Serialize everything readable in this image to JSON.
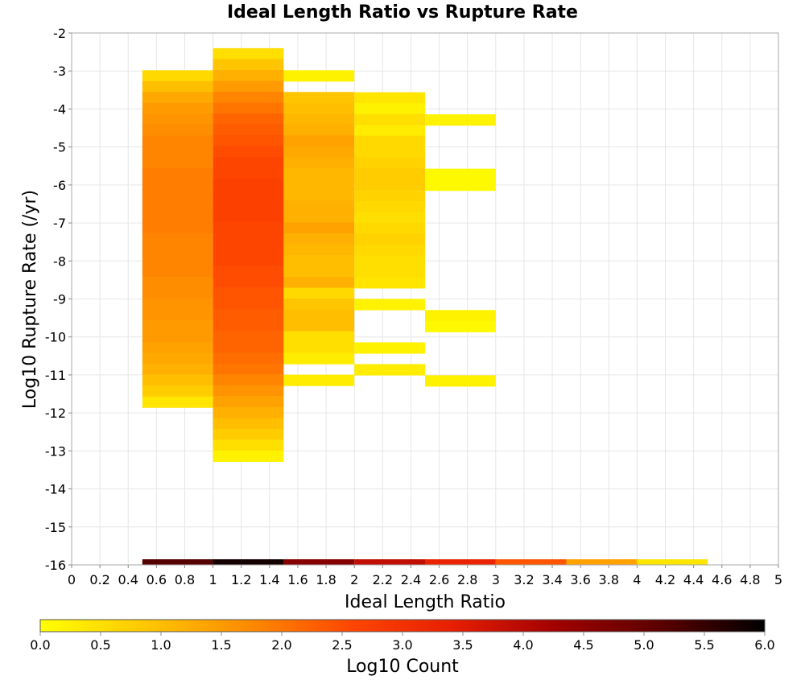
{
  "chart_data": {
    "type": "heatmap",
    "title": "Ideal Length Ratio vs Rupture Rate",
    "xlabel": "Ideal Length Ratio",
    "ylabel": "Log10 Rupture Rate (/yr)",
    "xlim": [
      0,
      5
    ],
    "ylim": [
      -16,
      -2
    ],
    "x_ticks": [
      "0",
      "0.2",
      "0.4",
      "0.6",
      "0.8",
      "1",
      "1.2",
      "1.4",
      "1.6",
      "1.8",
      "2",
      "2.2",
      "2.4",
      "2.6",
      "2.8",
      "3",
      "3.2",
      "3.4",
      "3.6",
      "3.8",
      "4",
      "4.2",
      "4.4",
      "4.6",
      "4.8",
      "5"
    ],
    "y_ticks": [
      "-2",
      "-3",
      "-4",
      "-5",
      "-6",
      "-7",
      "-8",
      "-9",
      "-10",
      "-11",
      "-12",
      "-13",
      "-14",
      "-15",
      "-16"
    ],
    "grid": true,
    "x_bin_width": 0.5,
    "y_bin_height": 0.2862,
    "colorbar": {
      "label": "Log10 Count",
      "range": [
        0,
        6
      ],
      "ticks": [
        "0.0",
        "0.5",
        "1.0",
        "1.5",
        "2.0",
        "2.5",
        "3.0",
        "3.5",
        "4.0",
        "4.5",
        "5.0",
        "5.5",
        "6.0"
      ],
      "stops": [
        "#ffff00",
        "#ffc800",
        "#ff8c00",
        "#ff4600",
        "#e61e00",
        "#a00000",
        "#5a0000",
        "#000000"
      ]
    },
    "columns": [
      {
        "x_start": 0.5,
        "y_top": -2.98,
        "values": [
          0.6,
          1.0,
          1.3,
          1.5,
          1.6,
          1.7,
          1.8,
          1.8,
          1.8,
          1.9,
          1.9,
          1.9,
          1.9,
          1.9,
          1.9,
          1.8,
          1.8,
          1.8,
          1.8,
          1.7,
          1.7,
          1.6,
          1.6,
          1.5,
          1.5,
          1.4,
          1.3,
          1.2,
          1.0,
          0.8,
          0.4
        ]
      },
      {
        "x_start": 1.0,
        "y_top": -2.4,
        "values": [
          0.5,
          0.9,
          1.2,
          1.5,
          1.8,
          2.0,
          2.2,
          2.3,
          2.4,
          2.5,
          2.6,
          2.6,
          2.7,
          2.7,
          2.7,
          2.7,
          2.6,
          2.6,
          2.6,
          2.6,
          2.5,
          2.5,
          2.4,
          2.4,
          2.3,
          2.3,
          2.2,
          2.2,
          2.1,
          2.0,
          1.8,
          1.6,
          1.4,
          1.2,
          1.0,
          0.8,
          0.5,
          0.2
        ]
      },
      {
        "x_start": 1.5,
        "y_top": -2.98,
        "values": [
          0.2,
          null,
          0.9,
          1.0,
          1.1,
          1.2,
          1.4,
          1.3,
          1.2,
          1.1,
          1.1,
          1.1,
          1.2,
          1.2,
          1.4,
          1.2,
          1.1,
          1.0,
          1.0,
          1.2,
          0.6,
          0.9,
          1.0,
          1.0,
          0.5,
          0.5,
          0.3,
          null,
          0.3
        ]
      },
      {
        "x_start": 2.0,
        "y_top": -3.56,
        "values": [
          0.4,
          0.2,
          0.5,
          0.3,
          0.6,
          0.6,
          0.7,
          0.8,
          0.8,
          0.7,
          0.6,
          0.5,
          0.6,
          0.7,
          0.6,
          0.5,
          0.5,
          0.4,
          null,
          0.2,
          null,
          null,
          null,
          0.2,
          null,
          0.3
        ]
      },
      {
        "x_start": 2.5,
        "y_top": -4.14,
        "values": [
          0.2,
          null,
          null,
          null,
          null,
          0.1,
          0.1,
          null,
          null,
          null,
          null,
          null,
          null,
          null,
          null,
          null,
          null,
          null,
          0.2,
          0.1,
          null,
          null,
          null,
          null,
          0.2
        ]
      }
    ],
    "marginal_x": {
      "x_starts": [
        0.5,
        1.0,
        1.5,
        2.0,
        2.5,
        3.0,
        3.5,
        4.0
      ],
      "values": [
        5.2,
        5.8,
        4.6,
        3.9,
        3.3,
        2.4,
        1.4,
        0.4
      ]
    }
  }
}
